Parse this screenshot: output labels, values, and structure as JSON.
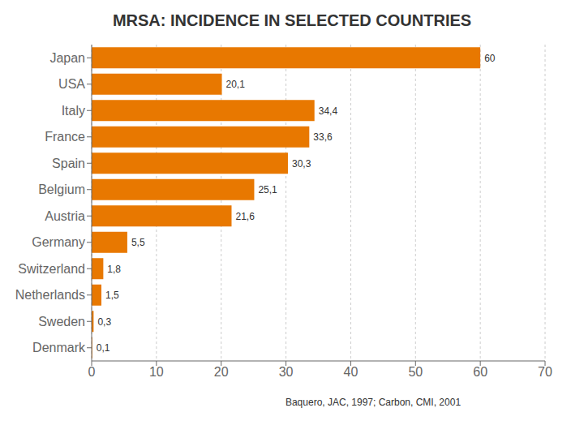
{
  "chart_data": {
    "type": "bar",
    "orientation": "horizontal",
    "title": "MRSA: INCIDENCE IN SELECTED COUNTRIES",
    "annotations": [
      "Baquero, JAC, 1997; Carbon, CMI, 2001"
    ],
    "categories": [
      "Japan",
      "USA",
      "Italy",
      "France",
      "Spain",
      "Belgium",
      "Austria",
      "Germany",
      "Switzerland",
      "Netherlands",
      "Sweden",
      "Denmark"
    ],
    "values": [
      60,
      20.1,
      34.4,
      33.6,
      30.3,
      25.1,
      21.6,
      5.5,
      1.8,
      1.5,
      0.3,
      0.1
    ],
    "value_labels": [
      "60",
      "20,1",
      "34,4",
      "33,6",
      "30,3",
      "25,1",
      "21,6",
      "5,5",
      "1,8",
      "1,5",
      "0,3",
      "0,1"
    ],
    "data_labels": true,
    "color": "#e87800",
    "xlim": [
      0,
      70
    ],
    "xticks": [
      0,
      10,
      20,
      30,
      40,
      50,
      60,
      70
    ],
    "grid": true
  }
}
